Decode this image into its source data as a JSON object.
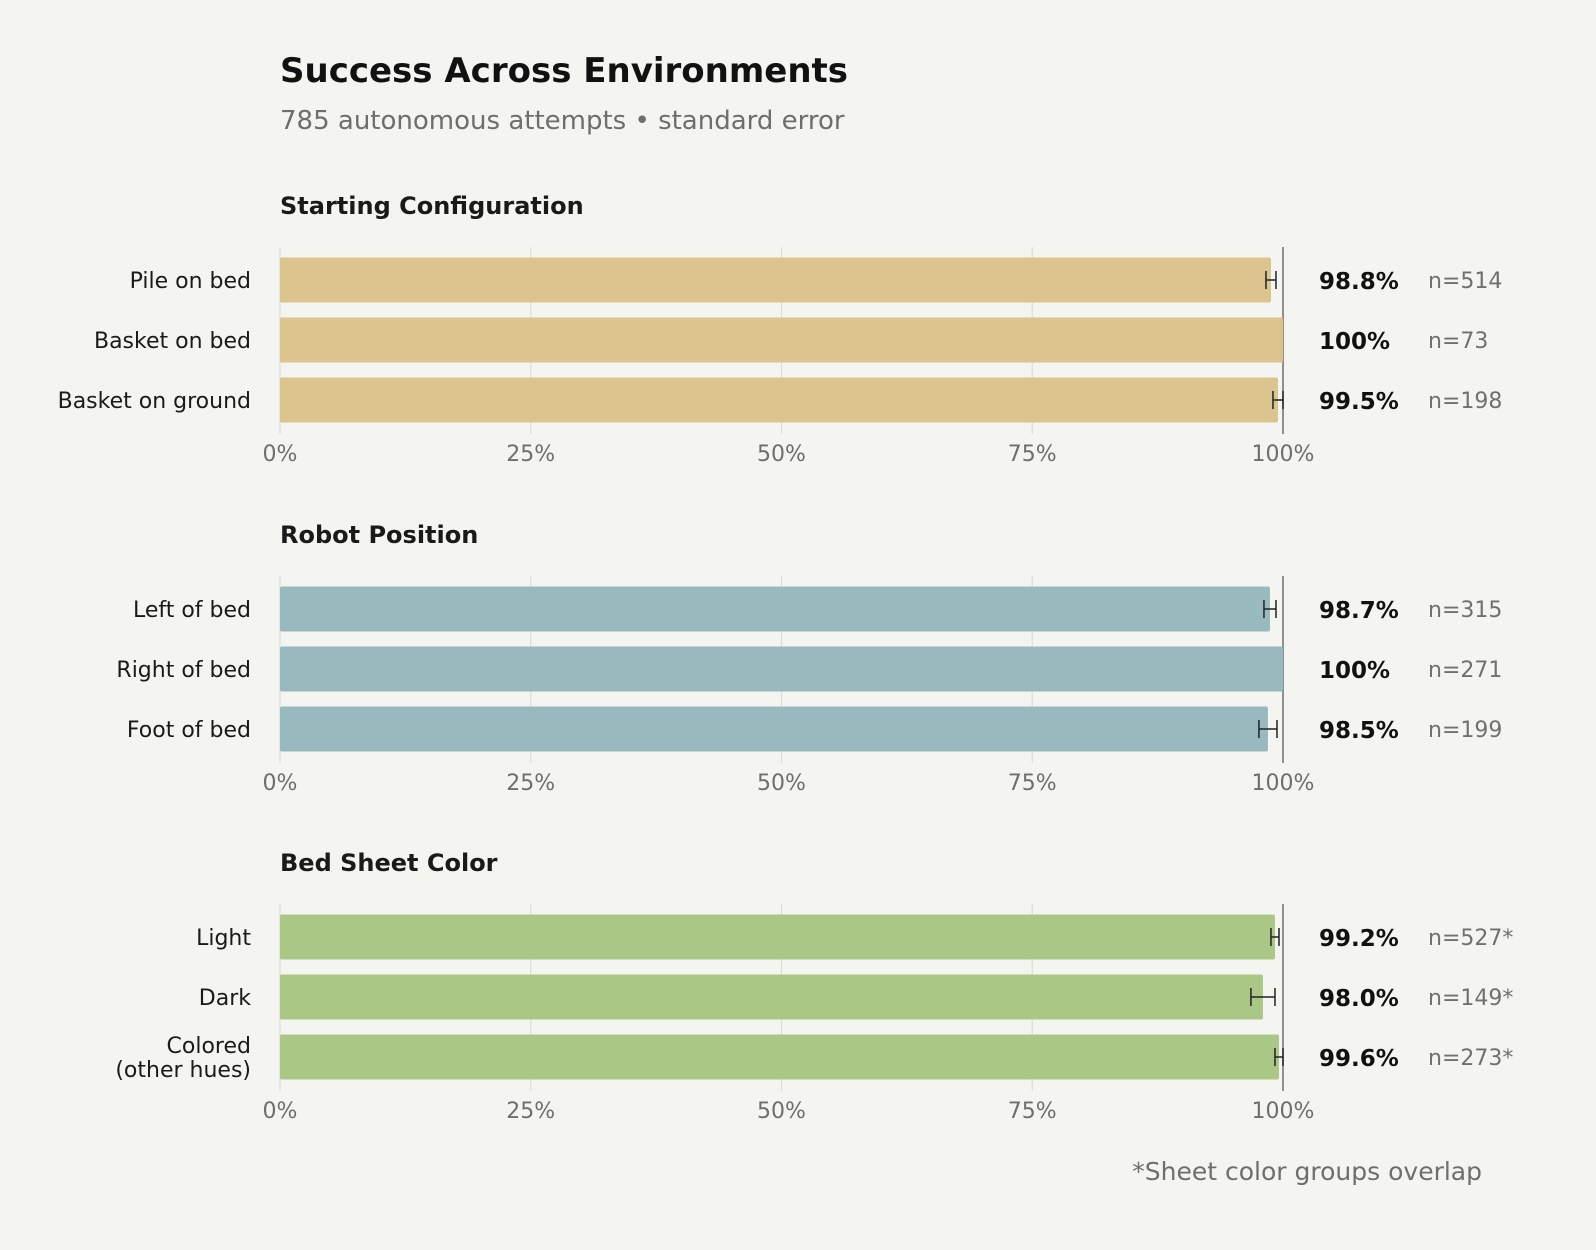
{
  "title": "Success Across Environments",
  "subtitle": "785 autonomous attempts • standard error",
  "footnote": "*Sheet color groups overlap",
  "chart_data": [
    {
      "type": "bar",
      "orientation": "horizontal",
      "title": "Starting Configuration",
      "color": "#dbc58c",
      "xlim": [
        0,
        100
      ],
      "ticks": [
        "0%",
        "25%",
        "50%",
        "75%",
        "100%"
      ],
      "tick_values": [
        0,
        25,
        50,
        75,
        100
      ],
      "grid": true,
      "categories": [
        "Pile on bed",
        "Basket on bed",
        "Basket on ground"
      ],
      "values": [
        98.8,
        100,
        99.5
      ],
      "errors": [
        0.5,
        0,
        0.5
      ],
      "value_labels": [
        "98.8%",
        "100%",
        "99.5%"
      ],
      "n_labels": [
        "n=514",
        "n=73",
        "n=198"
      ]
    },
    {
      "type": "bar",
      "orientation": "horizontal",
      "title": "Robot Position",
      "color": "#98babe",
      "xlim": [
        0,
        100
      ],
      "ticks": [
        "0%",
        "25%",
        "50%",
        "75%",
        "100%"
      ],
      "tick_values": [
        0,
        25,
        50,
        75,
        100
      ],
      "grid": true,
      "categories": [
        "Left of bed",
        "Right of bed",
        "Foot of bed"
      ],
      "values": [
        98.7,
        100,
        98.5
      ],
      "errors": [
        0.6,
        0,
        0.9
      ],
      "value_labels": [
        "98.7%",
        "100%",
        "98.5%"
      ],
      "n_labels": [
        "n=315",
        "n=271",
        "n=199"
      ]
    },
    {
      "type": "bar",
      "orientation": "horizontal",
      "title": "Bed Sheet Color",
      "color": "#abc785",
      "xlim": [
        0,
        100
      ],
      "ticks": [
        "0%",
        "25%",
        "50%",
        "75%",
        "100%"
      ],
      "tick_values": [
        0,
        25,
        50,
        75,
        100
      ],
      "grid": true,
      "categories": [
        [
          "Light"
        ],
        [
          "Dark"
        ],
        [
          "Colored",
          "(other hues)"
        ]
      ],
      "values": [
        99.2,
        98.0,
        99.6
      ],
      "errors": [
        0.4,
        1.2,
        0.4
      ],
      "value_labels": [
        "99.2%",
        "98.0%",
        "99.6%"
      ],
      "n_labels": [
        "n=527*",
        "n=149*",
        "n=273*"
      ]
    }
  ]
}
